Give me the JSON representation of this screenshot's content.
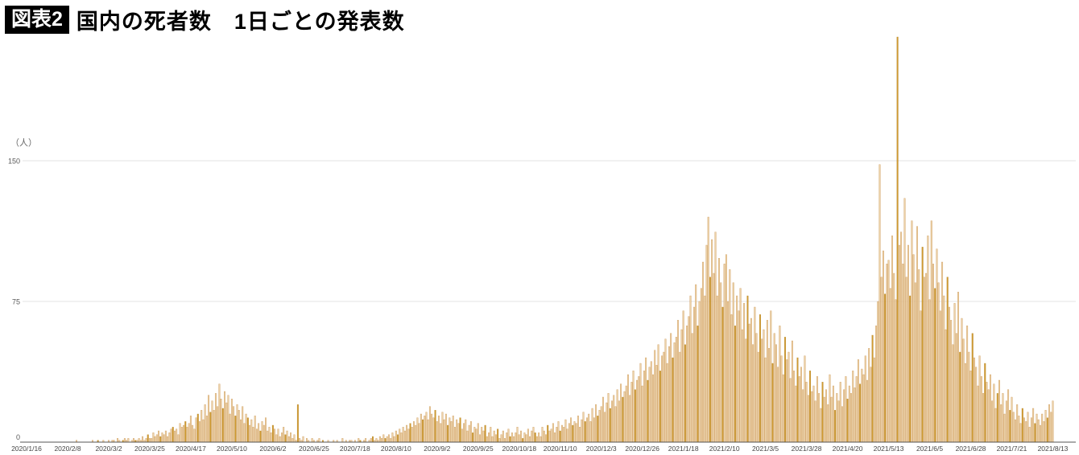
{
  "figure": {
    "tag": "図表2",
    "title": "国内の死者数　1日ごとの発表数"
  },
  "chart_data": {
    "type": "bar",
    "title": "国内の死者数　1日ごとの発表数",
    "unit_label": "（人）",
    "ylabel": "人",
    "y_ticks": [
      0,
      75,
      150
    ],
    "ylim": [
      0,
      225
    ],
    "grid": "horizontal",
    "x_start": "2020/1/16",
    "x_end": "2021/8/13",
    "x_tick_interval_days": 23,
    "x_tick_labels": [
      "2020/1/16",
      "2020/2/8",
      "2020/3/2",
      "2020/3/25",
      "2020/4/17",
      "2020/5/10",
      "2020/6/2",
      "2020/6/25",
      "2020/7/18",
      "2020/8/10",
      "2020/9/2",
      "2020/9/25",
      "2020/10/18",
      "2020/11/10",
      "2020/12/3",
      "2020/12/26",
      "2021/1/18",
      "2021/2/10",
      "2021/3/5",
      "2021/3/28",
      "2021/4/20",
      "2021/5/13",
      "2021/6/5",
      "2021/6/28",
      "2021/7/21",
      "2021/8/13"
    ],
    "bar_color": "#ecd2a8",
    "bar_edge_color": "#c9914d",
    "highlight_color": "#d09b31",
    "highlight_edge_color": "#b8862a",
    "highlight_rule": "every 7th bar (weekly reporting spike), offset 5",
    "gridline_color": "#e3e3e3",
    "axis_color": "#555555",
    "tick_text_color": "#595959",
    "max_value_shown": 216,
    "values": [
      0,
      0,
      0,
      0,
      0,
      0,
      0,
      0,
      0,
      0,
      0,
      0,
      0,
      0,
      0,
      0,
      0,
      0,
      0,
      0,
      0,
      0,
      0,
      0,
      0,
      0,
      0,
      0,
      1,
      0,
      0,
      0,
      0,
      0,
      0,
      0,
      0,
      1,
      0,
      0,
      1,
      0,
      0,
      1,
      0,
      0,
      1,
      0,
      1,
      1,
      0,
      2,
      1,
      0,
      1,
      2,
      1,
      2,
      0,
      1,
      2,
      1,
      1,
      2,
      1,
      3,
      1,
      2,
      4,
      2,
      2,
      5,
      3,
      4,
      6,
      3,
      5,
      4,
      6,
      3,
      5,
      7,
      8,
      6,
      7,
      4,
      10,
      8,
      9,
      11,
      8,
      10,
      14,
      9,
      7,
      13,
      15,
      11,
      17,
      12,
      20,
      14,
      25,
      16,
      22,
      17,
      26,
      19,
      31,
      23,
      18,
      27,
      21,
      25,
      15,
      23,
      19,
      14,
      20,
      17,
      12,
      19,
      10,
      15,
      13,
      9,
      12,
      8,
      14,
      7,
      10,
      6,
      11,
      9,
      13,
      6,
      8,
      5,
      9,
      7,
      4,
      7,
      3,
      5,
      8,
      4,
      6,
      3,
      5,
      2,
      4,
      1,
      20,
      2,
      1,
      3,
      0,
      2,
      1,
      0,
      2,
      1,
      0,
      1,
      2,
      0,
      1,
      0,
      0,
      1,
      0,
      0,
      1,
      0,
      1,
      0,
      0,
      2,
      0,
      1,
      0,
      1,
      1,
      0,
      1,
      0,
      2,
      1,
      0,
      1,
      2,
      0,
      1,
      2,
      3,
      1,
      2,
      1,
      3,
      2,
      4,
      2,
      3,
      4,
      2,
      5,
      3,
      6,
      4,
      7,
      5,
      8,
      6,
      9,
      7,
      10,
      8,
      11,
      9,
      13,
      10,
      15,
      12,
      14,
      16,
      12,
      19,
      15,
      13,
      17,
      11,
      14,
      10,
      16,
      12,
      15,
      9,
      13,
      11,
      14,
      8,
      12,
      10,
      13,
      7,
      10,
      12,
      6,
      9,
      11,
      5,
      8,
      7,
      10,
      4,
      8,
      6,
      9,
      3,
      5,
      8,
      3,
      6,
      4,
      7,
      2,
      4,
      6,
      2,
      5,
      7,
      3,
      5,
      3,
      5,
      8,
      4,
      6,
      2,
      5,
      4,
      7,
      3,
      6,
      8,
      5,
      3,
      5,
      3,
      8,
      6,
      4,
      9,
      6,
      7,
      10,
      5,
      8,
      11,
      6,
      9,
      8,
      12,
      7,
      10,
      13,
      9,
      11,
      10,
      14,
      8,
      12,
      16,
      11,
      13,
      15,
      11,
      18,
      13,
      20,
      14,
      17,
      19,
      24,
      16,
      21,
      26,
      18,
      22,
      25,
      19,
      28,
      22,
      31,
      24,
      27,
      30,
      36,
      25,
      32,
      38,
      28,
      33,
      35,
      42,
      30,
      38,
      45,
      33,
      40,
      43,
      36,
      49,
      41,
      52,
      38,
      46,
      48,
      55,
      42,
      51,
      58,
      45,
      53,
      56,
      65,
      48,
      60,
      70,
      52,
      62,
      67,
      78,
      58,
      72,
      84,
      62,
      75,
      82,
      96,
      78,
      105,
      120,
      88,
      108,
      90,
      112,
      78,
      98,
      85,
      72,
      95,
      100,
      75,
      92,
      68,
      85,
      62,
      78,
      70,
      82,
      60,
      74,
      55,
      78,
      63,
      66,
      52,
      72,
      58,
      48,
      68,
      55,
      60,
      45,
      65,
      50,
      70,
      42,
      58,
      52,
      40,
      62,
      46,
      36,
      56,
      44,
      48,
      34,
      54,
      38,
      30,
      45,
      35,
      40,
      28,
      46,
      32,
      25,
      38,
      27,
      30,
      22,
      35,
      26,
      18,
      32,
      24,
      28,
      20,
      36,
      24,
      30,
      17,
      26,
      22,
      32,
      19,
      28,
      35,
      23,
      30,
      26,
      38,
      29,
      35,
      44,
      31,
      39,
      36,
      46,
      33,
      50,
      40,
      57,
      45,
      62,
      75,
      148,
      88,
      102,
      79,
      95,
      97,
      82,
      110,
      90,
      76,
      216,
      105,
      112,
      95,
      130,
      88,
      105,
      78,
      118,
      100,
      85,
      115,
      92,
      70,
      104,
      88,
      90,
      110,
      76,
      118,
      95,
      82,
      103,
      85,
      70,
      96,
      78,
      60,
      88,
      72,
      65,
      52,
      74,
      58,
      80,
      48,
      66,
      55,
      42,
      62,
      48,
      38,
      58,
      45,
      40,
      30,
      46,
      35,
      26,
      42,
      32,
      28,
      36,
      22,
      31,
      18,
      26,
      33,
      20,
      26,
      15,
      22,
      28,
      17,
      24,
      16,
      12,
      20,
      14,
      10,
      18,
      13,
      11,
      16,
      8,
      13,
      18,
      10,
      15,
      12,
      9,
      15,
      11,
      17,
      13,
      20,
      16,
      22
    ]
  }
}
